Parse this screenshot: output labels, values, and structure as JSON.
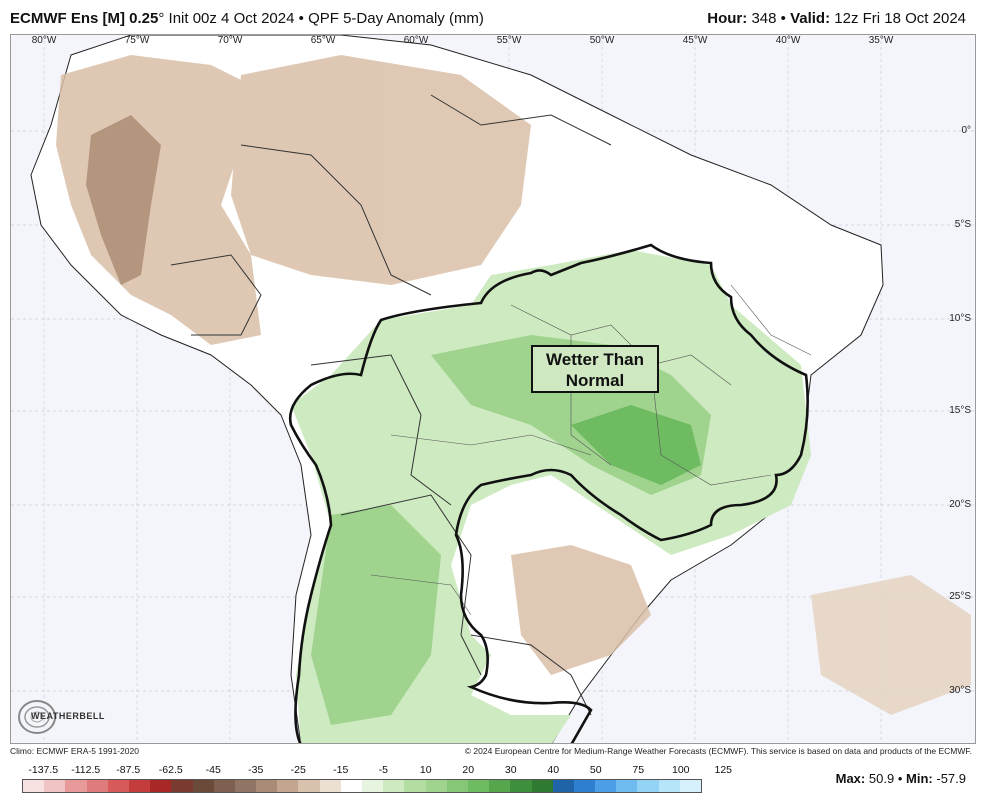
{
  "header": {
    "model": "ECMWF Ens [M] 0.25",
    "degree": "°",
    "init": "Init 00z 4 Oct 2024",
    "bullet": "•",
    "product": "QPF 5-Day Anomaly (mm)",
    "hour_label": "Hour:",
    "hour_value": "348",
    "valid_label": "Valid:",
    "valid_value": "12z Fri 18 Oct 2024"
  },
  "map": {
    "lon_labels": [
      "80°W",
      "75°W",
      "70°W",
      "65°W",
      "60°W",
      "55°W",
      "50°W",
      "45°W",
      "40°W",
      "35°W"
    ],
    "lat_labels": [
      "0°",
      "5°S",
      "10°S",
      "15°S",
      "20°S",
      "25°S",
      "30°S"
    ],
    "annotation_line1": "Wetter Than",
    "annotation_line2": "Normal",
    "colors": {
      "dry_brown": "#d9bfa8",
      "dry_dark": "#a88468",
      "wet_light": "#cdeac0",
      "wet_mid": "#9fd38e",
      "wet_dark": "#6fbb62",
      "ocean": "#f4f5fa"
    }
  },
  "logo": {
    "text": "WEATHERBELL",
    "icon": "weatherbell-swirl-logo"
  },
  "footer": {
    "climo": "Climo: ECMWF ERA-5 1991-2020",
    "copyright": "© 2024 European Centre for Medium-Range Weather Forecasts (ECMWF). This service is based on data and products of the ECMWF."
  },
  "colorbar": {
    "labels": [
      "-137.5",
      "-112.5",
      "-87.5",
      "-62.5",
      "-45",
      "-35",
      "-25",
      "-15",
      "-5",
      "10",
      "20",
      "30",
      "40",
      "50",
      "75",
      "100",
      "125"
    ],
    "colors": [
      "#f7e1e1",
      "#f0c4c4",
      "#e89a9a",
      "#e07b7b",
      "#d65a5a",
      "#c43c3c",
      "#a82828",
      "#7a3a30",
      "#6b4a3a",
      "#7d6050",
      "#907464",
      "#a88a76",
      "#c2a68f",
      "#d8c2ad",
      "#ece0d2",
      "#ffffff",
      "#e6f4e0",
      "#cdeac0",
      "#b2dea2",
      "#9fd38e",
      "#86c777",
      "#6fbb62",
      "#57a64d",
      "#3e8f3c",
      "#2f7a30",
      "#1f63a8",
      "#2e7fd0",
      "#4c9ee6",
      "#6fbbf0",
      "#92d2f5",
      "#b6e4f8",
      "#d6f1fb"
    ]
  },
  "stats": {
    "max_label": "Max",
    "max_value": "50.9",
    "min_label": "Min",
    "min_value": "-57.9"
  }
}
